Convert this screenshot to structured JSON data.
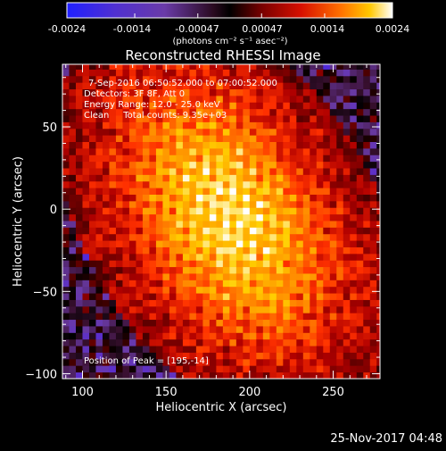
{
  "colorbar": {
    "tick_labels": [
      "-0.0024",
      "-0.0014",
      "-0.00047",
      "0.00047",
      "0.0014",
      "0.0024"
    ],
    "range": [
      -0.0024,
      0.0024
    ],
    "units_label": "(photons cm⁻² s⁻¹ asec⁻²)"
  },
  "chart_data": {
    "type": "heatmap",
    "title": "Reconstructed RHESSI Image",
    "xlabel": "Heliocentric X (arcsec)",
    "ylabel": "Heliocentric Y (arcsec)",
    "xlim": [
      88,
      278
    ],
    "ylim": [
      -103,
      88
    ],
    "x_ticks": [
      100,
      150,
      200,
      250
    ],
    "y_ticks": [
      -100,
      -50,
      0,
      50
    ],
    "x_tick_labels": [
      "100",
      "150",
      "200",
      "250"
    ],
    "y_tick_labels": [
      "−100",
      "−50",
      "0",
      "50"
    ],
    "peak": [
      195,
      -14
    ],
    "colormap": [
      "#2020ff",
      "#5a2dd0",
      "#6a3ba8",
      "#3a1030",
      "#000000",
      "#5a0000",
      "#b00000",
      "#ff3000",
      "#ff8a00",
      "#ffd000",
      "#ffffff"
    ],
    "annotations": {
      "time_range": "7-Sep-2016 06:50:52.000 to 07:00:52.000",
      "detectors": "Detectors: 3F 8F, Att 0",
      "energy": "Energy Range: 12.0 - 25.0 keV",
      "clean": "Clean     Total counts: 9.35e+03",
      "peak_text": "Position of Peak = [195,-14]"
    }
  },
  "footer": {
    "date": "25-Nov-2017 04:48"
  }
}
